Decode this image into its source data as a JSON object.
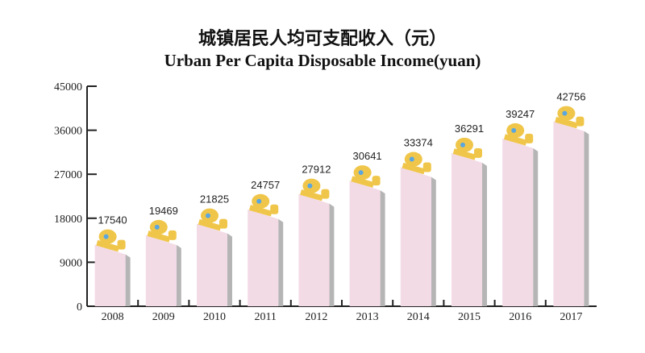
{
  "chart_data": {
    "type": "bar",
    "title": "城镇居民人均可支配收入（元）",
    "subtitle": "Urban Per Capita Disposable Income(yuan)",
    "categories": [
      "2008",
      "2009",
      "2010",
      "2011",
      "2012",
      "2013",
      "2014",
      "2015",
      "2016",
      "2017"
    ],
    "values": [
      17540,
      19469,
      21825,
      24757,
      27912,
      30641,
      33374,
      36291,
      39247,
      42756
    ],
    "labels": [
      "17540",
      "19469",
      "21825",
      "24757",
      "27912",
      "30641",
      "33374",
      "36291",
      "39247",
      "42756"
    ],
    "ylim": [
      0,
      45000
    ],
    "yticks": [
      "0",
      "9000",
      "18000",
      "27000",
      "36000",
      "45000"
    ],
    "xlabel": "",
    "ylabel": "",
    "grid": false,
    "colors": {
      "bar": "#f3dbe6",
      "shade": "#b5b5b5",
      "icon": "#f0c64a",
      "icon_accent": "#5aa6e0"
    }
  }
}
